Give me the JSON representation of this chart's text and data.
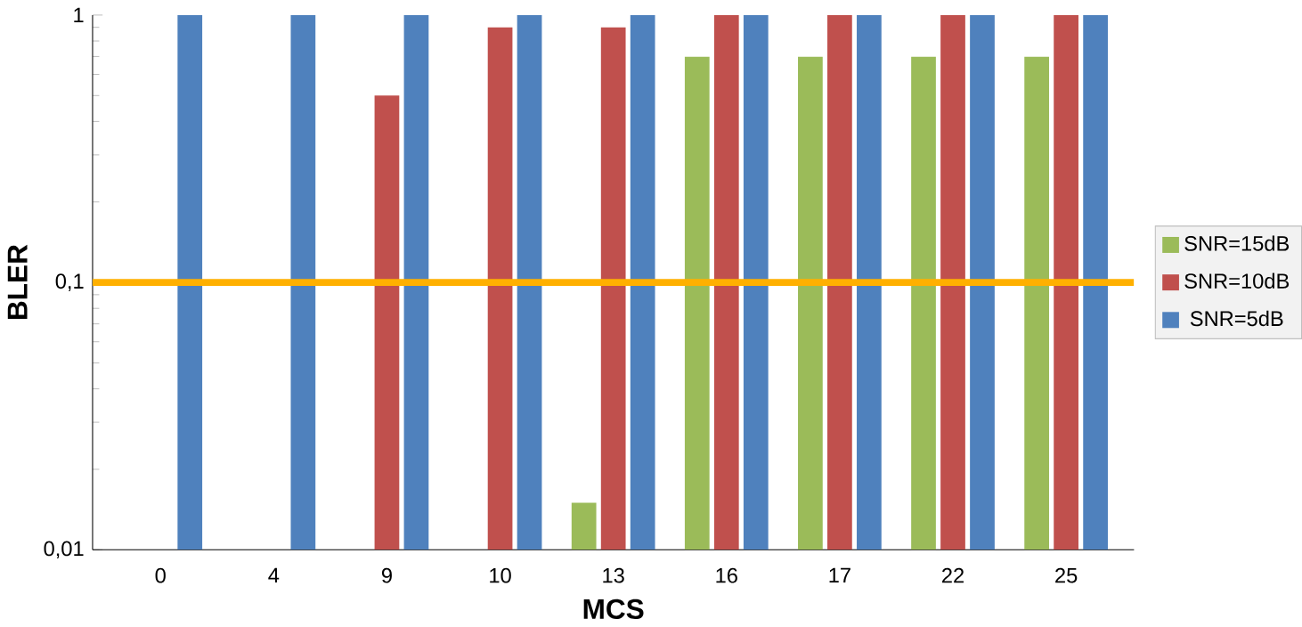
{
  "chart_data": {
    "type": "bar",
    "xlabel": "MCS",
    "ylabel": "BLER",
    "categories": [
      "0",
      "4",
      "9",
      "10",
      "13",
      "16",
      "17",
      "22",
      "25"
    ],
    "series": [
      {
        "name": "SNR=15dB",
        "color": "#9bbb59",
        "values": [
          0.01,
          0.01,
          0.01,
          0.01,
          0.015,
          0.7,
          0.7,
          0.7,
          0.7
        ]
      },
      {
        "name": "SNR=10dB",
        "color": "#c0504d",
        "values": [
          0.01,
          0.01,
          0.5,
          0.9,
          0.9,
          1,
          1,
          1,
          1
        ]
      },
      {
        "name": "SNR=5dB",
        "color": "#4f81bd",
        "values": [
          1,
          1,
          1,
          1,
          1,
          1,
          1,
          1,
          1
        ]
      }
    ],
    "log": "y",
    "ylim": [
      0.01,
      1
    ],
    "yticks": [
      {
        "value": 0.01,
        "label": "0,01"
      },
      {
        "value": 0.1,
        "label": "0,1"
      },
      {
        "value": 1,
        "label": "1"
      }
    ],
    "legend": "right",
    "ref_lines": [
      {
        "axis": "y",
        "value": 0.1,
        "color": "#ffb000"
      }
    ]
  }
}
